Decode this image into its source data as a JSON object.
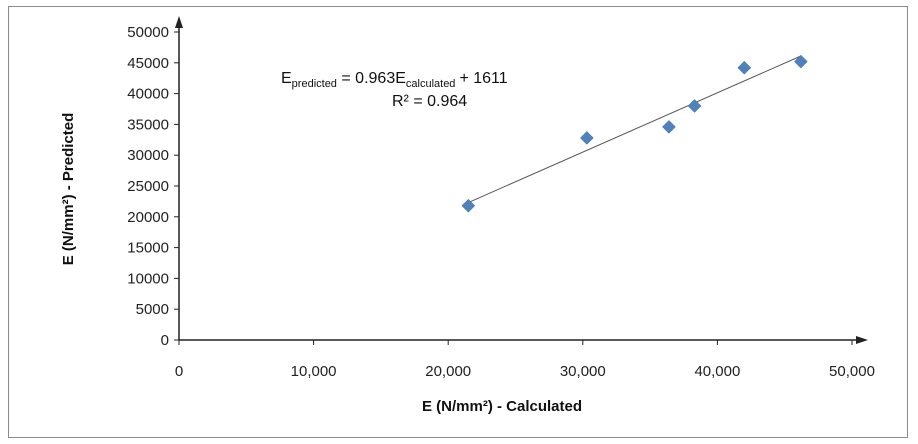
{
  "chart_data": {
    "type": "scatter",
    "title": "",
    "xlabel": "E (N/mm²) - Calculated",
    "ylabel": "E (N/mm²) - Predicted",
    "xlim": [
      0,
      50000
    ],
    "ylim": [
      0,
      50000
    ],
    "x_ticks": [
      "0",
      "10,000",
      "20,000",
      "30,000",
      "40,000",
      "50,000"
    ],
    "y_ticks": [
      "0",
      "5000",
      "10000",
      "15000",
      "20000",
      "25000",
      "30000",
      "35000",
      "40000",
      "45000",
      "50000"
    ],
    "grid": false,
    "legend": "none",
    "series": [
      {
        "marker": "diamond",
        "color": "#4f81bd",
        "points": [
          {
            "x": 21500,
            "y": 21800
          },
          {
            "x": 30300,
            "y": 32800
          },
          {
            "x": 36400,
            "y": 34600
          },
          {
            "x": 38300,
            "y": 38000
          },
          {
            "x": 42000,
            "y": 44200
          },
          {
            "x": 46200,
            "y": 45200
          }
        ]
      }
    ],
    "trendline": {
      "slope": 0.963,
      "intercept": 1611,
      "x_range": [
        21500,
        46200
      ],
      "color": "#555555"
    },
    "annotation": {
      "equation_parts": [
        "E",
        "predicted",
        " = 0.963E",
        "calculated",
        "+ 1611"
      ],
      "r_squared": "R² = 0.964"
    }
  }
}
